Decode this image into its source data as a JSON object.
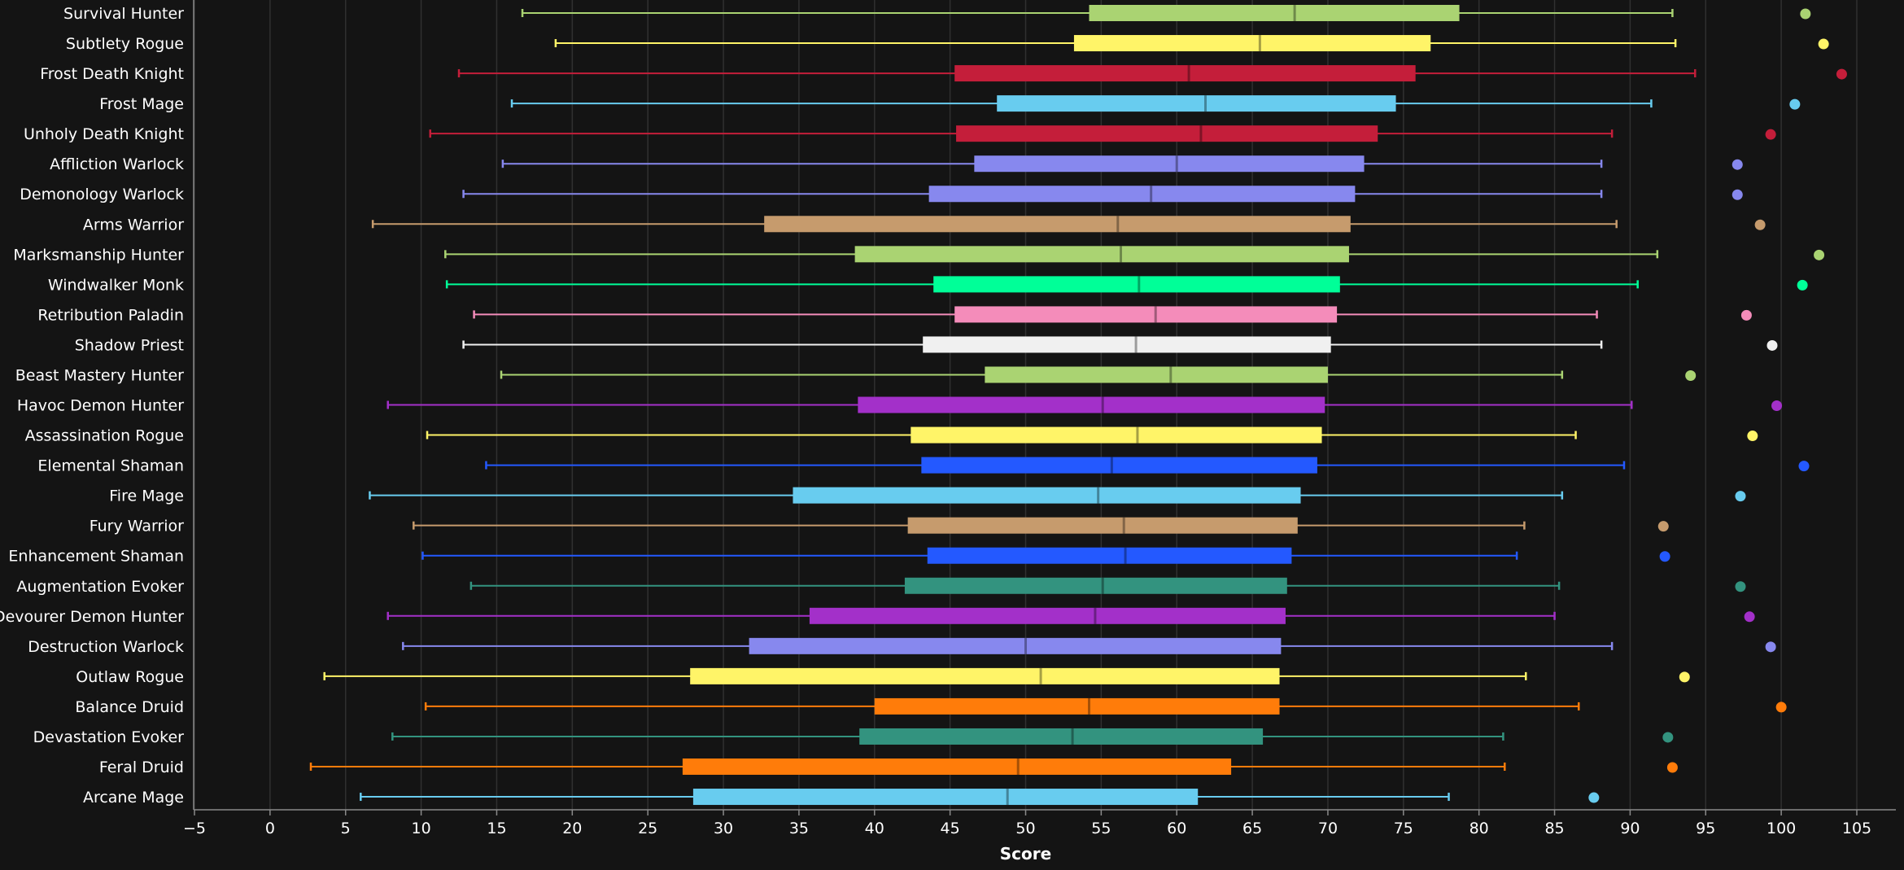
{
  "chart_data": {
    "type": "boxplot",
    "title": "",
    "xlabel": "Score",
    "ylabel": "",
    "xlim": [
      -5,
      105
    ],
    "xticks": [
      "−5",
      "0",
      "5",
      "10",
      "15",
      "20",
      "25",
      "30",
      "35",
      "40",
      "45",
      "50",
      "55",
      "60",
      "65",
      "70",
      "75",
      "80",
      "85",
      "90",
      "95",
      "100",
      "105"
    ],
    "xtick_values": [
      -5,
      0,
      5,
      10,
      15,
      20,
      25,
      30,
      35,
      40,
      45,
      50,
      55,
      60,
      65,
      70,
      75,
      80,
      85,
      90,
      95,
      100,
      105
    ],
    "grid": true,
    "series": [
      {
        "name": "Survival Hunter",
        "color": "#aad372",
        "min": 16.7,
        "q1": 54.2,
        "median": 67.8,
        "q3": 78.7,
        "max": 92.8,
        "outlier": 101.6
      },
      {
        "name": "Subtlety Rogue",
        "color": "#fff468",
        "min": 18.9,
        "q1": 53.2,
        "median": 65.5,
        "q3": 76.8,
        "max": 93.0,
        "outlier": 102.8
      },
      {
        "name": "Frost Death Knight",
        "color": "#c41e3a",
        "min": 12.5,
        "q1": 45.3,
        "median": 60.8,
        "q3": 75.8,
        "max": 94.3,
        "outlier": 104.0
      },
      {
        "name": "Frost Mage",
        "color": "#68ccef",
        "min": 16.0,
        "q1": 48.1,
        "median": 61.9,
        "q3": 74.5,
        "max": 91.4,
        "outlier": 100.9
      },
      {
        "name": "Unholy Death Knight",
        "color": "#c41e3a",
        "min": 10.6,
        "q1": 45.4,
        "median": 61.6,
        "q3": 73.3,
        "max": 88.8,
        "outlier": 99.3
      },
      {
        "name": "Affliction Warlock",
        "color": "#8788ee",
        "min": 15.4,
        "q1": 46.6,
        "median": 60.0,
        "q3": 72.4,
        "max": 88.1,
        "outlier": 97.1
      },
      {
        "name": "Demonology Warlock",
        "color": "#8788ee",
        "min": 12.8,
        "q1": 43.6,
        "median": 58.3,
        "q3": 71.8,
        "max": 88.1,
        "outlier": 97.1
      },
      {
        "name": "Arms Warrior",
        "color": "#c69b6d",
        "min": 6.8,
        "q1": 32.7,
        "median": 56.1,
        "q3": 71.5,
        "max": 89.1,
        "outlier": 98.6
      },
      {
        "name": "Marksmanship Hunter",
        "color": "#aad372",
        "min": 11.6,
        "q1": 38.7,
        "median": 56.3,
        "q3": 71.4,
        "max": 91.8,
        "outlier": 102.5
      },
      {
        "name": "Windwalker Monk",
        "color": "#00ff98",
        "min": 11.7,
        "q1": 43.9,
        "median": 57.5,
        "q3": 70.8,
        "max": 90.5,
        "outlier": 101.4
      },
      {
        "name": "Retribution Paladin",
        "color": "#f48cba",
        "min": 13.5,
        "q1": 45.3,
        "median": 58.6,
        "q3": 70.6,
        "max": 87.8,
        "outlier": 97.7
      },
      {
        "name": "Shadow Priest",
        "color": "#f0f0f0",
        "min": 12.8,
        "q1": 43.2,
        "median": 57.3,
        "q3": 70.2,
        "max": 88.1,
        "outlier": 99.4
      },
      {
        "name": "Beast Mastery Hunter",
        "color": "#aad372",
        "min": 15.3,
        "q1": 47.3,
        "median": 59.6,
        "q3": 70.0,
        "max": 85.5,
        "outlier": 94.0
      },
      {
        "name": "Havoc Demon Hunter",
        "color": "#a330c9",
        "min": 7.8,
        "q1": 38.9,
        "median": 55.1,
        "q3": 69.8,
        "max": 90.1,
        "outlier": 99.7
      },
      {
        "name": "Assassination Rogue",
        "color": "#fff468",
        "min": 10.4,
        "q1": 42.4,
        "median": 57.4,
        "q3": 69.6,
        "max": 86.4,
        "outlier": 98.1
      },
      {
        "name": "Elemental Shaman",
        "color": "#2459ff",
        "min": 14.3,
        "q1": 43.1,
        "median": 55.7,
        "q3": 69.3,
        "max": 89.6,
        "outlier": 101.5
      },
      {
        "name": "Fire Mage",
        "color": "#68ccef",
        "min": 6.6,
        "q1": 34.6,
        "median": 54.8,
        "q3": 68.2,
        "max": 85.5,
        "outlier": 97.3
      },
      {
        "name": "Fury Warrior",
        "color": "#c69b6d",
        "min": 9.5,
        "q1": 42.2,
        "median": 56.5,
        "q3": 68.0,
        "max": 83.0,
        "outlier": 92.2
      },
      {
        "name": "Enhancement Shaman",
        "color": "#2459ff",
        "min": 10.1,
        "q1": 43.5,
        "median": 56.6,
        "q3": 67.6,
        "max": 82.5,
        "outlier": 92.3
      },
      {
        "name": "Augmentation Evoker",
        "color": "#33937f",
        "min": 13.3,
        "q1": 42.0,
        "median": 55.1,
        "q3": 67.3,
        "max": 85.3,
        "outlier": 97.3
      },
      {
        "name": "Devourer Demon Hunter",
        "color": "#a330c9",
        "min": 7.8,
        "q1": 35.7,
        "median": 54.6,
        "q3": 67.2,
        "max": 85.0,
        "outlier": 97.9
      },
      {
        "name": "Destruction Warlock",
        "color": "#8788ee",
        "min": 8.8,
        "q1": 31.7,
        "median": 50.0,
        "q3": 66.9,
        "max": 88.8,
        "outlier": 99.3
      },
      {
        "name": "Outlaw Rogue",
        "color": "#fff468",
        "min": 3.6,
        "q1": 27.8,
        "median": 51.0,
        "q3": 66.8,
        "max": 83.1,
        "outlier": 93.6
      },
      {
        "name": "Balance Druid",
        "color": "#ff7c0a",
        "min": 10.3,
        "q1": 40.0,
        "median": 54.2,
        "q3": 66.8,
        "max": 86.6,
        "outlier": 100.0
      },
      {
        "name": "Devastation Evoker",
        "color": "#33937f",
        "min": 8.1,
        "q1": 39.0,
        "median": 53.1,
        "q3": 65.7,
        "max": 81.6,
        "outlier": 92.5
      },
      {
        "name": "Feral Druid",
        "color": "#ff7c0a",
        "min": 2.7,
        "q1": 27.3,
        "median": 49.5,
        "q3": 63.6,
        "max": 81.7,
        "outlier": 92.8
      },
      {
        "name": "Arcane Mage",
        "color": "#68ccef",
        "min": 6.0,
        "q1": 28.0,
        "median": 48.8,
        "q3": 61.4,
        "max": 78.0,
        "outlier": 87.6
      }
    ]
  }
}
